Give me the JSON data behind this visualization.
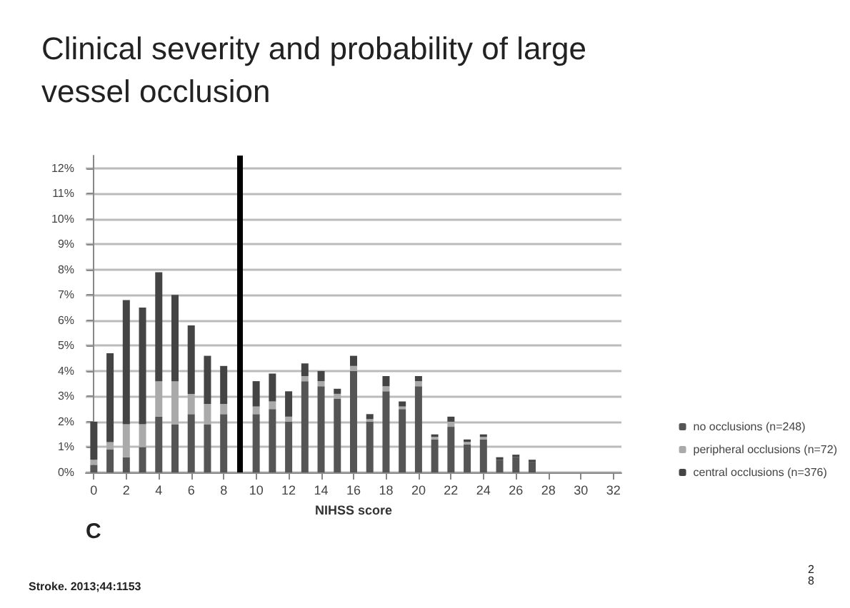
{
  "chart_data": {
    "type": "bar",
    "stacked": true,
    "title": "Clinical severity and probability of large vessel occlusion",
    "xlabel": "NIHSS score",
    "x": [
      0,
      1,
      2,
      3,
      4,
      5,
      6,
      7,
      8,
      9,
      10,
      11,
      12,
      13,
      14,
      15,
      16,
      17,
      18,
      19,
      20,
      21,
      22,
      23,
      24,
      25,
      26,
      27,
      28,
      29,
      30,
      31,
      32
    ],
    "series": [
      {
        "name": "no occlusions (n=248)",
        "color": "#555555",
        "values": [
          0.3,
          0.9,
          0.6,
          1.0,
          2.2,
          1.9,
          2.3,
          1.9,
          2.3,
          null,
          2.3,
          2.5,
          2.0,
          3.6,
          3.4,
          2.9,
          4.0,
          2.0,
          3.2,
          2.5,
          3.4,
          1.3,
          1.8,
          1.1,
          1.3,
          0.5,
          0.6,
          0.4,
          0,
          0,
          0,
          0,
          0
        ]
      },
      {
        "name": "peripheral occlusions (n=72)",
        "color": "#aaaaaa",
        "values": [
          0.2,
          0.3,
          1.3,
          0.9,
          1.4,
          1.7,
          0.8,
          0.8,
          0.4,
          null,
          0.3,
          0.3,
          0.2,
          0.2,
          0.2,
          0.2,
          0.2,
          0.1,
          0.2,
          0.1,
          0.2,
          0.1,
          0.2,
          0.1,
          0.1,
          0,
          0,
          0,
          0,
          0,
          0,
          0,
          0
        ]
      },
      {
        "name": "central occlusions (n=376)",
        "color": "#444444",
        "values": [
          1.5,
          3.5,
          4.9,
          4.6,
          4.3,
          3.4,
          2.7,
          1.9,
          1.5,
          null,
          1.0,
          1.1,
          1.0,
          0.5,
          0.4,
          0.2,
          0.4,
          0.2,
          0.4,
          0.2,
          0.2,
          0.1,
          0.2,
          0.1,
          0.1,
          0.1,
          0.1,
          0.1,
          0,
          0,
          0,
          0,
          0
        ]
      }
    ],
    "xlim": [
      -0.5,
      32.5
    ],
    "xticks": [
      0,
      2,
      4,
      6,
      8,
      10,
      12,
      14,
      16,
      18,
      20,
      22,
      24,
      26,
      28,
      30,
      32
    ],
    "ylim": [
      0,
      12.5
    ],
    "yticks": [
      {
        "value": 0,
        "label": "0%"
      },
      {
        "value": 1,
        "label": "1%"
      },
      {
        "value": 2,
        "label": "2%"
      },
      {
        "value": 3,
        "label": "3%"
      },
      {
        "value": 4,
        "label": "4%"
      },
      {
        "value": 5,
        "label": "5%"
      },
      {
        "value": 6,
        "label": "6%"
      },
      {
        "value": 7,
        "label": "7%"
      },
      {
        "value": 8,
        "label": "8%"
      },
      {
        "value": 9,
        "label": "9%"
      },
      {
        "value": 10,
        "label": "10%"
      },
      {
        "value": 11,
        "label": "11%"
      },
      {
        "value": 12,
        "label": "12%"
      }
    ],
    "grid": "y",
    "legend": "right",
    "ref_lines": [
      {
        "axis": "x",
        "value": 9,
        "color": "#000000"
      }
    ],
    "annotations": [
      "C",
      "Stroke. 2013;44:1153",
      "28"
    ]
  }
}
